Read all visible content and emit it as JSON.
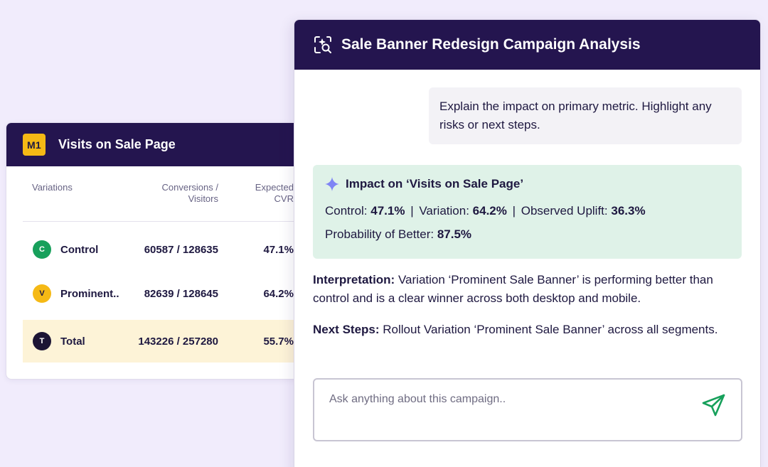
{
  "metric_card": {
    "badge": "M1",
    "title": "Visits on Sale Page",
    "columns": {
      "variations": "Variations",
      "conversions_line1": "Conversions /",
      "conversions_line2": "Visitors",
      "cvr_line1": "Expected",
      "cvr_line2": "CVR"
    },
    "rows": [
      {
        "dot": "C",
        "name": "Control",
        "conversions": "60587 / 128635",
        "cvr": "47.1%"
      },
      {
        "dot": "V",
        "name": "Prominent..",
        "conversions": "82639 / 128645",
        "cvr": "64.2%"
      },
      {
        "dot": "T",
        "name": "Total",
        "conversions": "143226 / 257280",
        "cvr": "55.7%"
      }
    ]
  },
  "panel": {
    "title": "Sale Banner Redesign Campaign Analysis",
    "user_message": "Explain the impact on primary metric. Highlight any risks or next steps.",
    "impact": {
      "title": "Impact on ‘Visits on Sale Page’",
      "control_label": "Control:",
      "control_value": "47.1%",
      "variation_label": "Variation:",
      "variation_value": "64.2%",
      "uplift_label": "Observed Uplift:",
      "uplift_value": "36.3%",
      "probability_label": "Probability of Better:",
      "probability_value": "87.5%"
    },
    "interpretation_label": "Interpretation:",
    "interpretation_text": "Variation ‘Prominent Sale Banner’ is performing better than control and is a clear winner across both desktop and mobile.",
    "next_steps_label": "Next Steps:",
    "next_steps_text": "Rollout Variation ‘Prominent Sale Banner’ across all segments.",
    "ask_placeholder": "Ask anything about this campaign.."
  },
  "icons": {
    "header": "ai-search-icon",
    "sparkle": "sparkle-icon",
    "send": "send-icon"
  },
  "colors": {
    "header_bg": "#24154f",
    "page_bg": "#f1ecfc",
    "impact_bg": "#dff2e8",
    "total_row_bg": "#fdf3d7",
    "control_dot": "#17a05b",
    "variation_dot": "#f5b915",
    "total_dot": "#1c1434",
    "send_icon": "#17a05b",
    "sparkle": "#7f84f5"
  }
}
